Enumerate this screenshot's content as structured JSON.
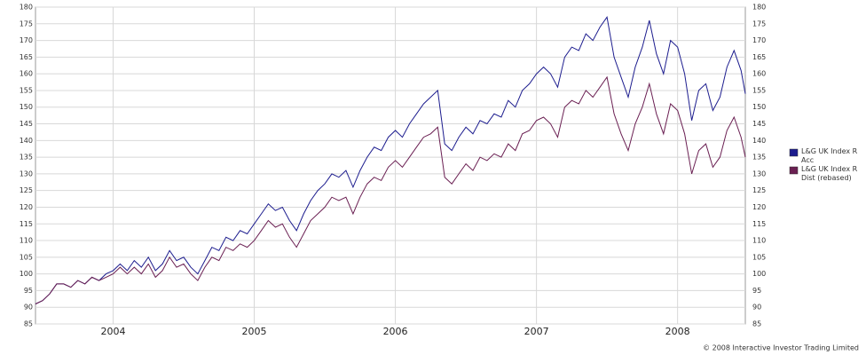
{
  "chart_data": {
    "type": "line",
    "x": [
      2003.45,
      2003.5,
      2003.55,
      2003.6,
      2003.65,
      2003.7,
      2003.75,
      2003.8,
      2003.85,
      2003.9,
      2003.95,
      2004.0,
      2004.05,
      2004.1,
      2004.15,
      2004.2,
      2004.25,
      2004.3,
      2004.35,
      2004.4,
      2004.45,
      2004.5,
      2004.55,
      2004.6,
      2004.65,
      2004.7,
      2004.75,
      2004.8,
      2004.85,
      2004.9,
      2004.95,
      2005.0,
      2005.05,
      2005.1,
      2005.15,
      2005.2,
      2005.25,
      2005.3,
      2005.35,
      2005.4,
      2005.45,
      2005.5,
      2005.55,
      2005.6,
      2005.65,
      2005.7,
      2005.75,
      2005.8,
      2005.85,
      2005.9,
      2005.95,
      2006.0,
      2006.05,
      2006.1,
      2006.15,
      2006.2,
      2006.25,
      2006.3,
      2006.35,
      2006.4,
      2006.45,
      2006.5,
      2006.55,
      2006.6,
      2006.65,
      2006.7,
      2006.75,
      2006.8,
      2006.85,
      2006.9,
      2006.95,
      2007.0,
      2007.05,
      2007.1,
      2007.15,
      2007.2,
      2007.25,
      2007.3,
      2007.35,
      2007.4,
      2007.45,
      2007.5,
      2007.55,
      2007.6,
      2007.65,
      2007.7,
      2007.75,
      2007.8,
      2007.85,
      2007.9,
      2007.95,
      2008.0,
      2008.05,
      2008.1,
      2008.15,
      2008.2,
      2008.25,
      2008.3,
      2008.35,
      2008.4,
      2008.45,
      2008.48
    ],
    "series": [
      {
        "name": "L&G UK Index R Acc",
        "color": "#1c1c8e",
        "values": [
          91,
          92,
          94,
          97,
          97,
          96,
          98,
          97,
          99,
          98,
          100,
          101,
          103,
          101,
          104,
          102,
          105,
          101,
          103,
          107,
          104,
          105,
          102,
          100,
          104,
          108,
          107,
          111,
          110,
          113,
          112,
          115,
          118,
          121,
          119,
          120,
          116,
          113,
          118,
          122,
          125,
          127,
          130,
          129,
          131,
          126,
          131,
          135,
          138,
          137,
          141,
          143,
          141,
          145,
          148,
          151,
          153,
          155,
          139,
          137,
          141,
          144,
          142,
          146,
          145,
          148,
          147,
          152,
          150,
          155,
          157,
          160,
          162,
          160,
          156,
          165,
          168,
          167,
          172,
          170,
          174,
          177,
          165,
          159,
          153,
          162,
          168,
          176,
          166,
          160,
          170,
          168,
          160,
          146,
          155,
          157,
          149,
          153,
          162,
          167,
          161,
          154
        ]
      },
      {
        "name": "L&G UK Index R Dist (rebased)",
        "color": "#6a1f52",
        "values": [
          91,
          92,
          94,
          97,
          97,
          96,
          98,
          97,
          99,
          98,
          99,
          100,
          102,
          100,
          102,
          100,
          103,
          99,
          101,
          105,
          102,
          103,
          100,
          98,
          102,
          105,
          104,
          108,
          107,
          109,
          108,
          110,
          113,
          116,
          114,
          115,
          111,
          108,
          112,
          116,
          118,
          120,
          123,
          122,
          123,
          118,
          123,
          127,
          129,
          128,
          132,
          134,
          132,
          135,
          138,
          141,
          142,
          144,
          129,
          127,
          130,
          133,
          131,
          135,
          134,
          136,
          135,
          139,
          137,
          142,
          143,
          146,
          147,
          145,
          141,
          150,
          152,
          151,
          155,
          153,
          156,
          159,
          148,
          142,
          137,
          145,
          150,
          157,
          148,
          142,
          151,
          149,
          142,
          130,
          137,
          139,
          132,
          135,
          143,
          147,
          141,
          135
        ]
      }
    ],
    "xlim": [
      2003.45,
      2008.48
    ],
    "xticks": [
      2004,
      2005,
      2006,
      2007,
      2008
    ],
    "ylim": [
      85,
      180
    ],
    "yticks": [
      85,
      90,
      95,
      100,
      105,
      110,
      115,
      120,
      125,
      130,
      135,
      140,
      145,
      150,
      155,
      160,
      165,
      170,
      175,
      180
    ],
    "grid": true,
    "legend": "right",
    "footnote": "© 2008 Interactive Investor Trading Limited"
  }
}
